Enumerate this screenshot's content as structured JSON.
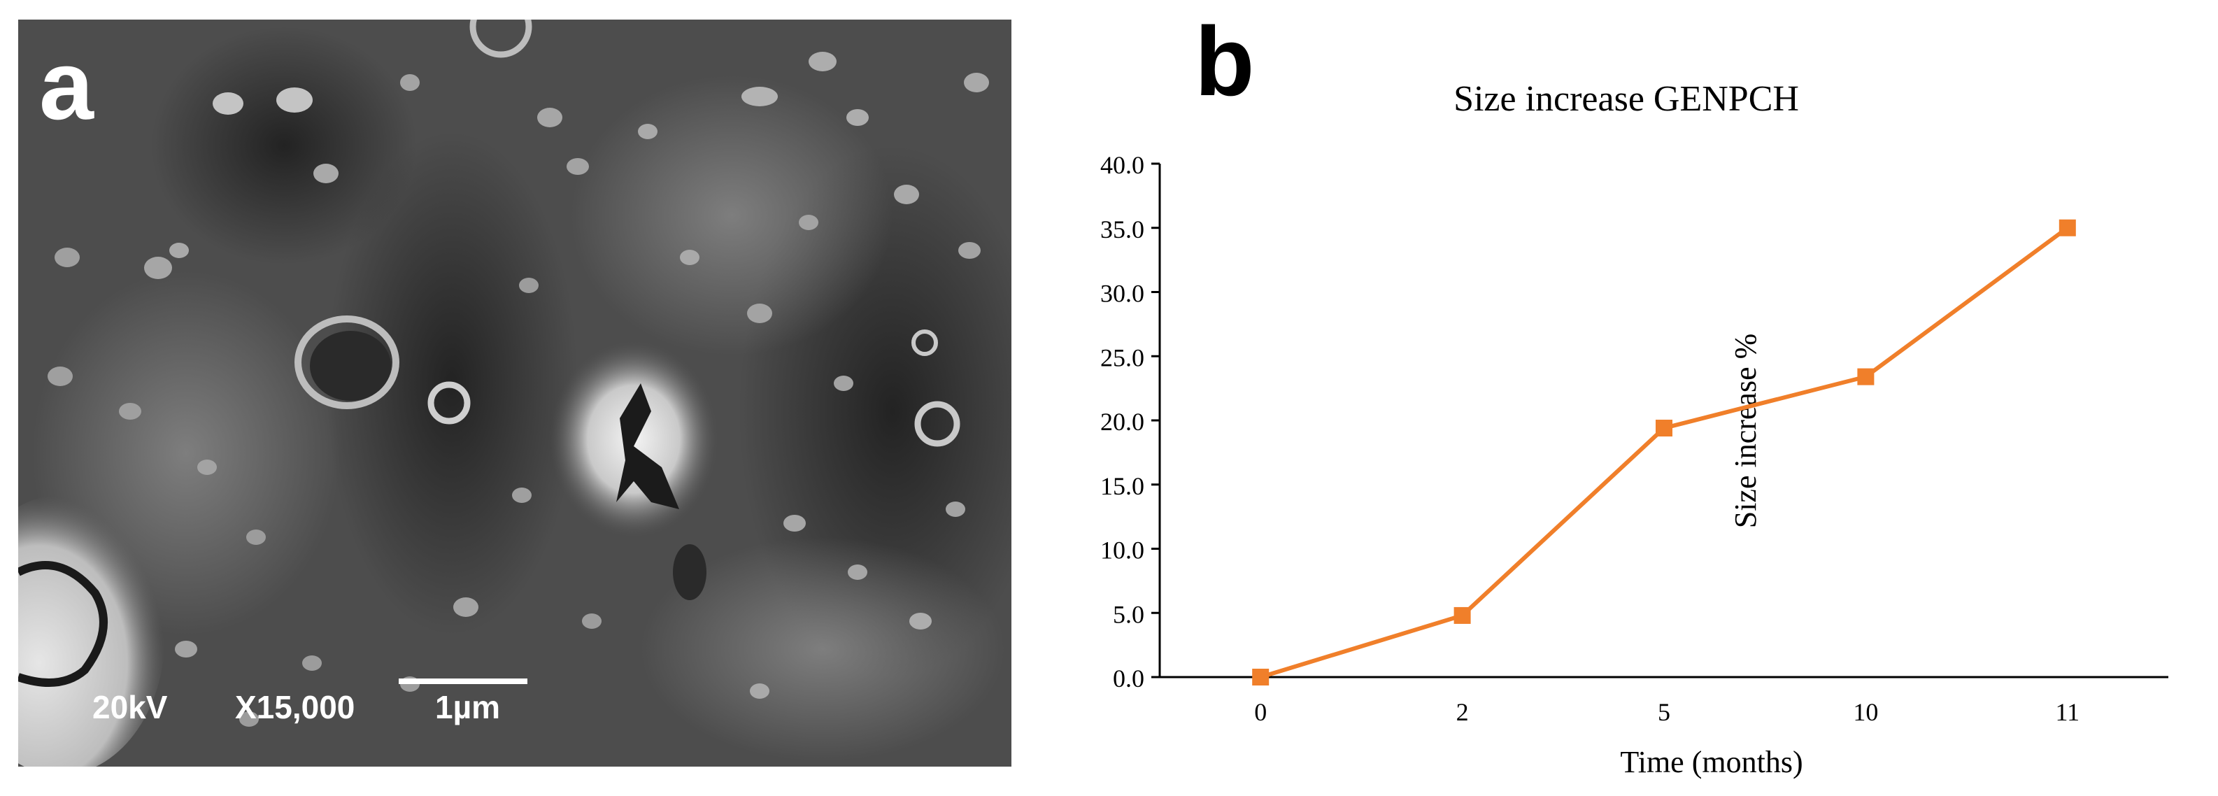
{
  "panels": {
    "a": {
      "letter": "a",
      "sem_labels": {
        "voltage": "20kV",
        "magnification": "X15,000",
        "scale": "1µm"
      }
    },
    "b": {
      "letter": "b"
    }
  },
  "colors": {
    "series": "#f07f2a",
    "axis": "#000000",
    "sem_background": "#4d4d4d"
  },
  "chart_data": {
    "type": "line",
    "title": "Size increase GENPCH",
    "xlabel": "Time (months)",
    "ylabel": "Size increase %",
    "categories": [
      "0",
      "2",
      "5",
      "10",
      "11"
    ],
    "values": [
      0.0,
      4.8,
      19.4,
      23.4,
      35.0
    ],
    "ylim": [
      0,
      40
    ],
    "yticks": [
      "0.0",
      "5.0",
      "10.0",
      "15.0",
      "20.0",
      "25.0",
      "30.0",
      "35.0",
      "40.0"
    ],
    "marker": "square",
    "grid": false,
    "legend": "none"
  }
}
